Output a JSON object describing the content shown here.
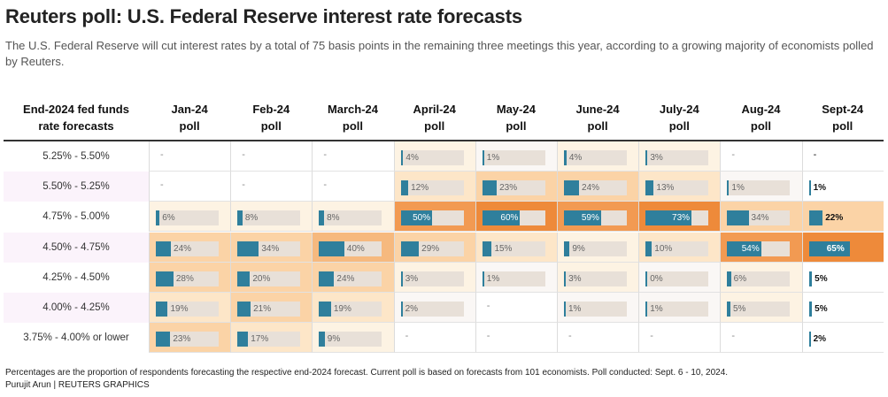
{
  "title": "Reuters poll: U.S. Federal Reserve interest rate forecasts",
  "subtitle": "The U.S. Federal Reserve will cut interest rates by a total of 75 basis points in the remaining three meetings this year, according to a growing majority of economists polled by Reuters.",
  "footer": "Percentages are the proportion of respondents forecasting the respective end-2024 forecast. Current poll is based on forecasts from 101 economists. Poll conducted: Sept. 6 - 10, 2024.",
  "credit": "Purujit Arun | REUTERS GRAPHICS",
  "colors": {
    "bar": "#2f7f9c",
    "track": "#e8e0d8",
    "heat_scale": [
      "#faf7f5",
      "#fdf3e3",
      "#fde6c8",
      "#fbd3a6",
      "#f6b97e",
      "#f29a52",
      "#ee8a3a"
    ],
    "sep_row_tint": "#fbf3fb"
  },
  "chart_data": {
    "type": "table",
    "row_header": [
      "End-2024 fed funds",
      "rate forecasts"
    ],
    "columns": [
      {
        "line1": "Jan-24",
        "line2": "poll"
      },
      {
        "line1": "Feb-24",
        "line2": "poll"
      },
      {
        "line1": "March-24",
        "line2": "poll"
      },
      {
        "line1": "April-24",
        "line2": "poll"
      },
      {
        "line1": "May-24",
        "line2": "poll"
      },
      {
        "line1": "June-24",
        "line2": "poll"
      },
      {
        "line1": "July-24",
        "line2": "poll"
      },
      {
        "line1": "Aug-24",
        "line2": "poll"
      },
      {
        "line1": "Sept-24",
        "line2": "poll"
      }
    ],
    "rows": [
      {
        "label": "5.25% - 5.50%",
        "values": [
          null,
          null,
          null,
          4,
          1,
          4,
          3,
          null,
          null
        ],
        "labels": [
          "-",
          "-",
          "-",
          "4%",
          "1%",
          "4%",
          "3%",
          "-",
          "-"
        ]
      },
      {
        "label": "5.50% - 5.25%",
        "values": [
          null,
          null,
          null,
          12,
          23,
          24,
          13,
          1,
          1
        ],
        "labels": [
          "-",
          "-",
          "-",
          "12%",
          "23%",
          "24%",
          "13%",
          "1%",
          "1%"
        ]
      },
      {
        "label": "4.75% - 5.00%",
        "values": [
          6,
          8,
          8,
          50,
          60,
          59,
          73,
          34,
          22
        ],
        "labels": [
          "6%",
          "8%",
          "8%",
          "50%",
          "60%",
          "59%",
          "73%",
          "34%",
          "22%"
        ]
      },
      {
        "label": "4.50% - 4.75%",
        "values": [
          24,
          34,
          40,
          29,
          15,
          9,
          10,
          54,
          65
        ],
        "labels": [
          "24%",
          "34%",
          "40%",
          "29%",
          "15%",
          "9%",
          "10%",
          "54%",
          "65%"
        ]
      },
      {
        "label": "4.25% - 4.50%",
        "values": [
          28,
          20,
          24,
          3,
          1,
          3,
          0,
          6,
          5
        ],
        "labels": [
          "28%",
          "20%",
          "24%",
          "3%",
          "1%",
          "3%",
          "0%",
          "6%",
          "5%"
        ]
      },
      {
        "label": "4.00% - 4.25%",
        "values": [
          19,
          21,
          19,
          2,
          null,
          1,
          1,
          5,
          5
        ],
        "labels": [
          "19%",
          "21%",
          "19%",
          "2%",
          "-",
          "1%",
          "1%",
          "5%",
          "5%"
        ]
      },
      {
        "label": "3.75% - 4.00% or lower",
        "values": [
          23,
          17,
          9,
          null,
          null,
          null,
          null,
          null,
          2
        ],
        "labels": [
          "23%",
          "17%",
          "9%",
          "-",
          "-",
          "-",
          "-",
          "-",
          "2%"
        ]
      }
    ]
  }
}
